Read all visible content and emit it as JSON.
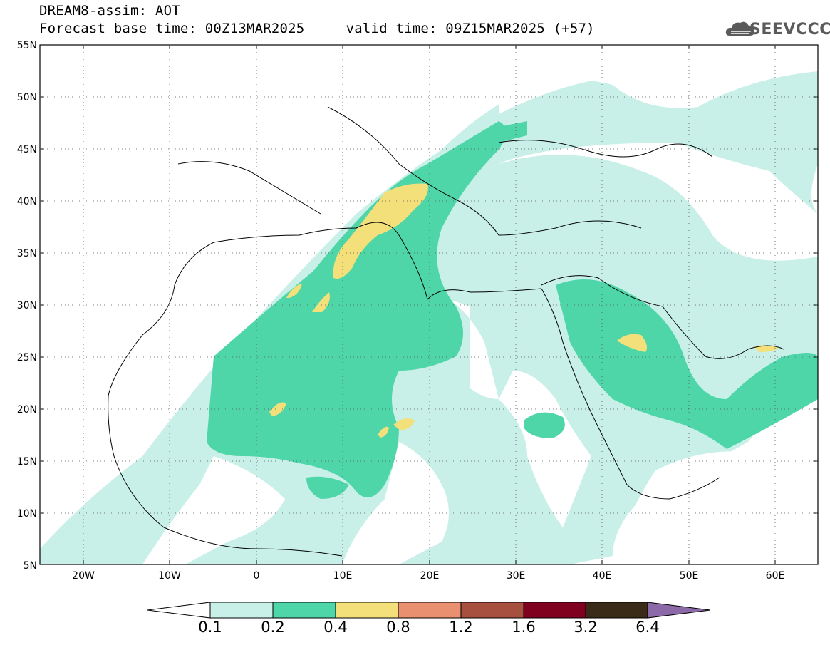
{
  "header": {
    "line1": "DREAM8-assim: AOT",
    "line2": "Forecast base time: 00Z13MAR2025     valid time: 09Z15MAR2025 (+57)"
  },
  "logo": {
    "text": "SEEVCCC"
  },
  "map": {
    "lat_labels": [
      "55N",
      "50N",
      "45N",
      "40N",
      "35N",
      "30N",
      "25N",
      "20N",
      "15N",
      "10N",
      "5N"
    ],
    "lon_labels": [
      "20W",
      "10W",
      "0",
      "10E",
      "20E",
      "30E",
      "40E",
      "50E",
      "60E"
    ],
    "lat_range": [
      5,
      55
    ],
    "lon_range": [
      -25,
      65
    ]
  },
  "colorbar": {
    "labels": [
      "0.1",
      "0.2",
      "0.4",
      "0.8",
      "1.2",
      "1.6",
      "3.2",
      "6.4"
    ],
    "colors": [
      "#ffffff",
      "#c8f0e8",
      "#4fd6a8",
      "#f4e07a",
      "#e89070",
      "#a85040",
      "#800020",
      "#3a2a18",
      "#8c6aa8"
    ]
  }
}
